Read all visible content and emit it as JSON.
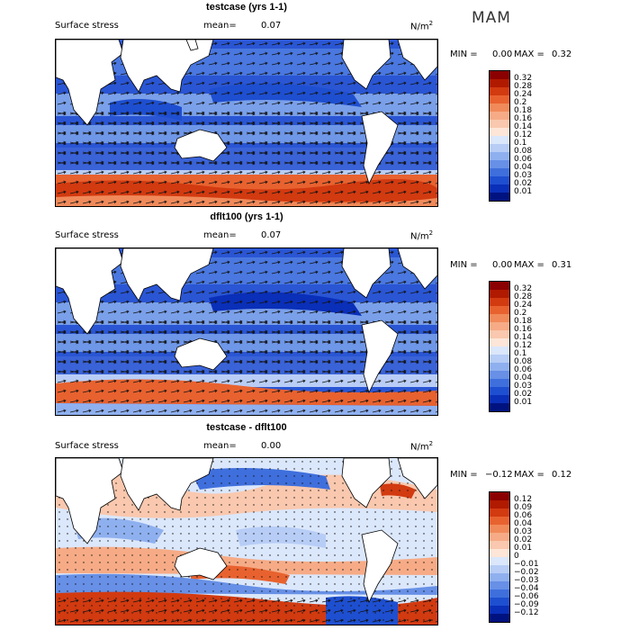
{
  "season": "MAM",
  "units_text": "N/m",
  "units_sup": "2",
  "panels": [
    {
      "title": "testcase (yrs 1-1)",
      "field_label": "Surface stress",
      "mean_label": "mean=",
      "mean_value": "0.07",
      "min_label": "MIN =",
      "min_value": "0.00",
      "max_label": "MAX =",
      "max_value": "0.32",
      "levels": [
        "0.32",
        "0.28",
        "0.24",
        "0.2",
        "0.18",
        "0.16",
        "0.14",
        "0.12",
        "0.1",
        "0.08",
        "0.06",
        "0.04",
        "0.03",
        "0.02",
        "0.01"
      ],
      "colors": [
        "#8b0000",
        "#b01a00",
        "#d23a10",
        "#e8622f",
        "#f18a5a",
        "#f6ab86",
        "#f9c8ae",
        "#fde6d8",
        "#dbe7fb",
        "#b7cdf6",
        "#8fb0ef",
        "#6790e6",
        "#3f6fdc",
        "#1e4fd0",
        "#0a2fb8",
        "#00127f"
      ]
    },
    {
      "title": "dflt100 (yrs 1-1)",
      "field_label": "Surface stress",
      "mean_label": "mean=",
      "mean_value": "0.07",
      "min_label": "MIN =",
      "min_value": "0.00",
      "max_label": "MAX =",
      "max_value": "0.31",
      "levels": [
        "0.32",
        "0.28",
        "0.24",
        "0.2",
        "0.18",
        "0.16",
        "0.14",
        "0.12",
        "0.1",
        "0.08",
        "0.06",
        "0.04",
        "0.03",
        "0.02",
        "0.01"
      ],
      "colors": [
        "#8b0000",
        "#b01a00",
        "#d23a10",
        "#e8622f",
        "#f18a5a",
        "#f6ab86",
        "#f9c8ae",
        "#fde6d8",
        "#dbe7fb",
        "#b7cdf6",
        "#8fb0ef",
        "#6790e6",
        "#3f6fdc",
        "#1e4fd0",
        "#0a2fb8",
        "#00127f"
      ]
    },
    {
      "title": "testcase - dflt100",
      "field_label": "Surface stress",
      "mean_label": "mean=",
      "mean_value": "0.00",
      "min_label": "MIN =",
      "min_value": "−0.12",
      "max_label": "MAX =",
      "max_value": "0.12",
      "levels": [
        "0.12",
        "0.09",
        "0.06",
        "0.04",
        "0.03",
        "0.02",
        "0.01",
        "0",
        "−0.01",
        "−0.02",
        "−0.03",
        "−0.04",
        "−0.06",
        "−0.09",
        "−0.12"
      ],
      "colors": [
        "#8b0000",
        "#b01a00",
        "#d23a10",
        "#e8622f",
        "#f18a5a",
        "#f6ab86",
        "#f9c8ae",
        "#fde6d8",
        "#dbe7fb",
        "#b7cdf6",
        "#8fb0ef",
        "#6790e6",
        "#3f6fdc",
        "#1e4fd0",
        "#0a2fb8",
        "#00127f"
      ]
    }
  ]
}
